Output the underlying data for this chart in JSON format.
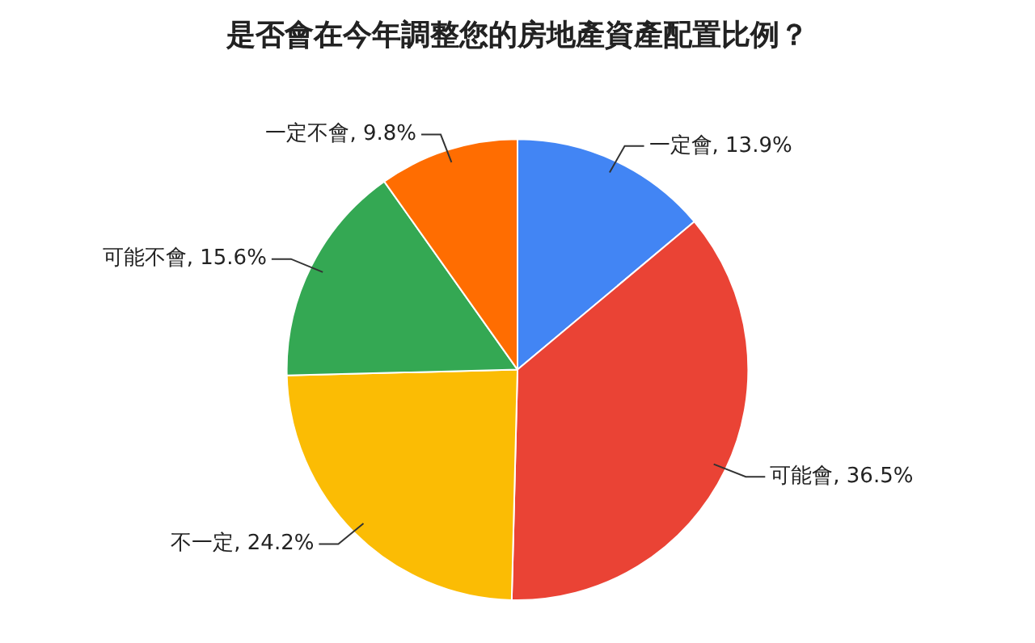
{
  "chart_data": {
    "type": "pie",
    "title": "是否會在今年調整您的房地產資產配置比例？",
    "categories": [
      "一定會",
      "可能會",
      "不一定",
      "可能不會",
      "一定不會"
    ],
    "values": [
      13.9,
      36.5,
      24.2,
      15.6,
      9.8
    ],
    "value_labels": [
      "13.9%",
      "36.5%",
      "24.2%",
      "15.6%",
      "9.8%"
    ],
    "colors": [
      "#4285f4",
      "#ea4335",
      "#fbbc04",
      "#34a853",
      "#ff6d01"
    ],
    "legend": false
  }
}
